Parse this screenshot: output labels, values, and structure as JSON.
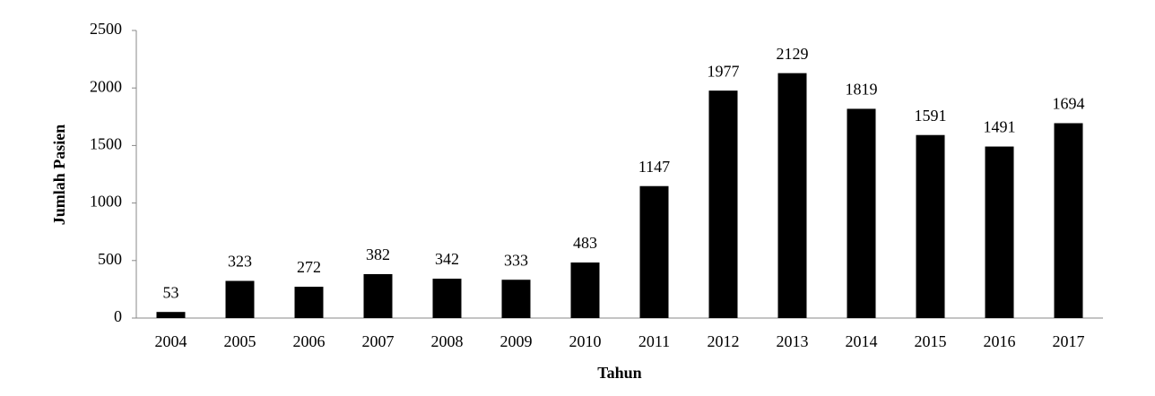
{
  "chart_data": {
    "type": "bar",
    "x_label": "Tahun",
    "y_label": "Jumlah Pasien",
    "categories": [
      "2004",
      "2005",
      "2006",
      "2007",
      "2008",
      "2009",
      "2010",
      "2011",
      "2012",
      "2013",
      "2014",
      "2015",
      "2016",
      "2017"
    ],
    "values": [
      53,
      323,
      272,
      382,
      342,
      333,
      483,
      1147,
      1977,
      2129,
      1819,
      1591,
      1491,
      1694
    ],
    "color": "#000000",
    "ylim": [
      0,
      2500
    ],
    "yticks": [
      0,
      500,
      1000,
      1500,
      2000,
      2500
    ],
    "grid": false
  }
}
